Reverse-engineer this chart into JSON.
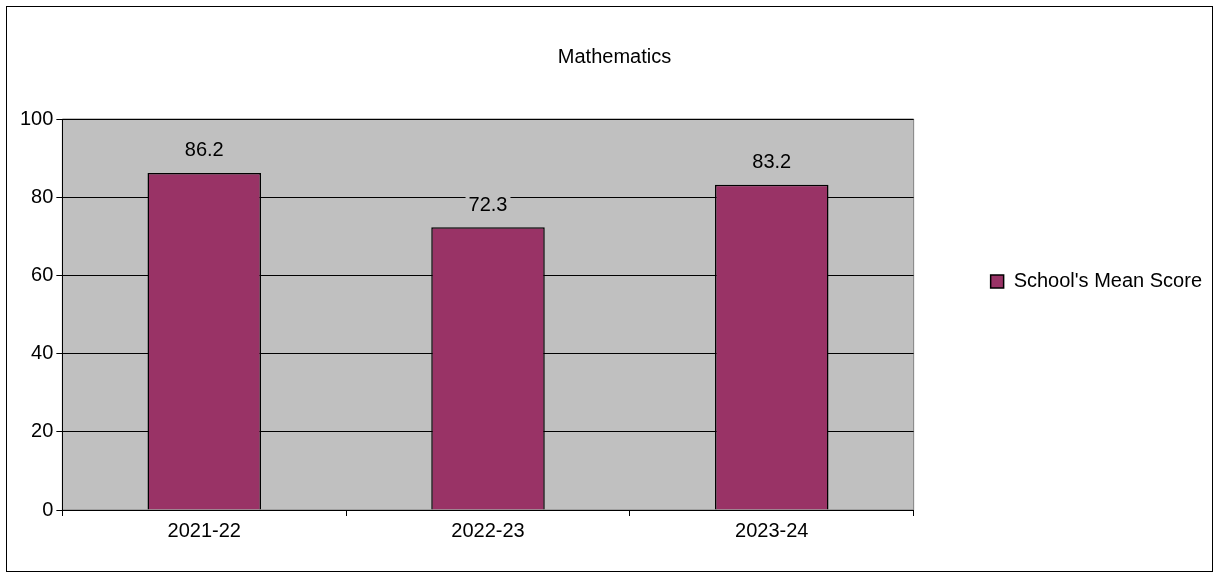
{
  "chart_data": {
    "type": "bar",
    "title": "Mathematics",
    "categories": [
      "2021-22",
      "2022-23",
      "2023-24"
    ],
    "series": [
      {
        "name": "School's Mean Score",
        "color": "#993366",
        "values": [
          86.2,
          72.3,
          83.2
        ]
      }
    ],
    "ylim": [
      0,
      100
    ],
    "yticks": [
      0,
      20,
      40,
      60,
      80,
      100
    ],
    "grid": "y",
    "legend": "right",
    "data_labels": true
  }
}
